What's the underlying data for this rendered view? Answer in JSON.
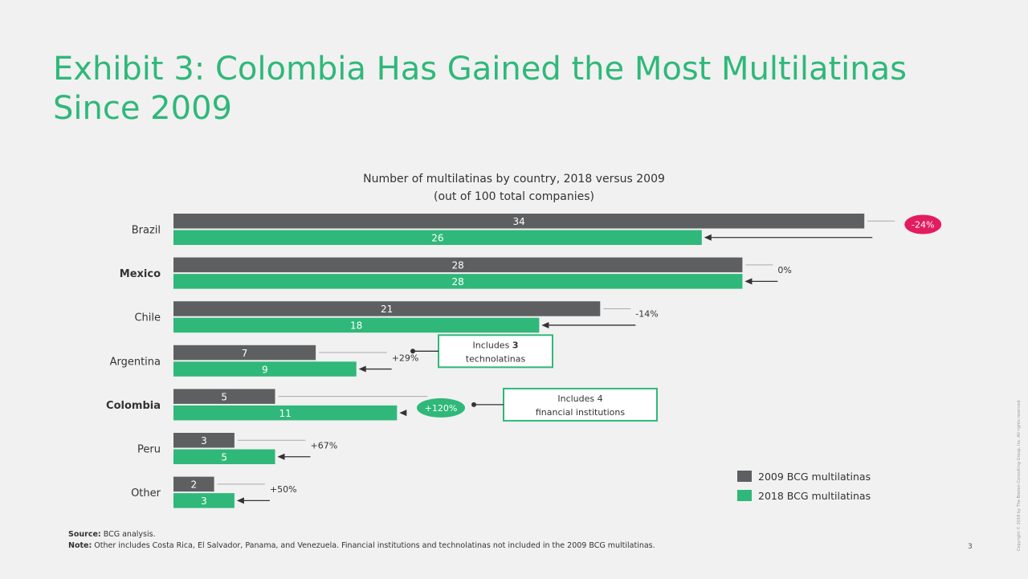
{
  "title": "Exhibit 3: Colombia Has Gained the Most Multilatinas Since 2009",
  "footnotes": {
    "source_label": "Source:",
    "source_text": "BCG analysis.",
    "note_label": "Note:",
    "note_text": "Other includes Costa Rica, El Salvador, Panama, and Venezuela. Financial institutions and technolatinas not included in the 2009 BCG multilatinas."
  },
  "page_number": "3",
  "copyright": "Copyright © 2018 by The Boston Consulting Group, Inc. All rights reserved.",
  "colors": {
    "series_2009": "#5e5f61",
    "series_2018": "#2fb879",
    "title": "#2fb879",
    "negative_badge": "#e31c5f",
    "positive_badge": "#2fb879",
    "callout_border": "#2fb879"
  },
  "chart_data": {
    "type": "bar",
    "orientation": "horizontal",
    "title": "Number of multilatinas by country, 2018 versus 2009",
    "subtitle": "(out of 100 total companies)",
    "categories": [
      "Brazil",
      "Mexico",
      "Chile",
      "Argentina",
      "Colombia",
      "Peru",
      "Other"
    ],
    "bold_categories": [
      "Mexico",
      "Colombia"
    ],
    "series": [
      {
        "name": "2009 BCG multilatinas",
        "values": [
          34,
          28,
          21,
          7,
          5,
          3,
          2
        ]
      },
      {
        "name": "2018 BCG multilatinas",
        "values": [
          26,
          28,
          18,
          9,
          11,
          5,
          3
        ]
      }
    ],
    "change_labels": [
      "-24%",
      "0%",
      "-14%",
      "+29%",
      "+120%",
      "+67%",
      "+50%"
    ],
    "highlighted_changes": {
      "Brazil": "negative",
      "Colombia": "positive"
    },
    "callouts": [
      {
        "category": "Argentina",
        "prefix": "Includes ",
        "bold": "3",
        "line2": "technolatinas"
      },
      {
        "category": "Colombia",
        "prefix": "Includes 4",
        "bold": "",
        "line2": "financial institutions"
      }
    ],
    "xlim": [
      0,
      34
    ],
    "grid": false,
    "legend_position": "bottom-right"
  }
}
